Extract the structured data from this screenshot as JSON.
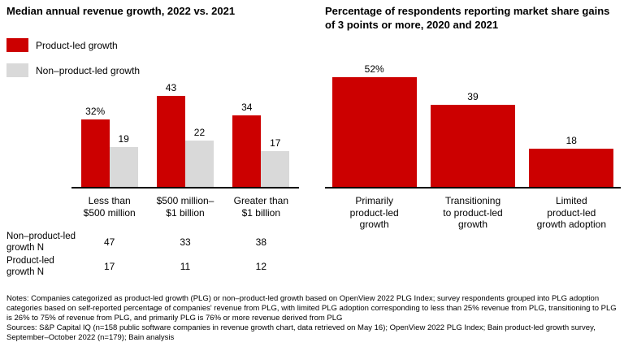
{
  "colors": {
    "plg_red": "#cc0000",
    "non_plg_gray": "#d9d9d9",
    "axis_black": "#000000"
  },
  "chart_data": [
    {
      "type": "bar",
      "title": "Median annual revenue growth, 2022 vs. 2021",
      "categories": [
        "Less than $500 million",
        "$500 million–$1 billion",
        "Greater than $1 billion"
      ],
      "category_labels": [
        "Less than\n$500 million",
        "$500 million–\n$1 billion",
        "Greater than\n$1 billion"
      ],
      "series": [
        {
          "name": "Product-led growth",
          "values": [
            32,
            43,
            34
          ],
          "labels": [
            "32%",
            "43",
            "34"
          ],
          "color": "#cc0000"
        },
        {
          "name": "Non–product-led growth",
          "values": [
            19,
            22,
            17
          ],
          "labels": [
            "19",
            "22",
            "17"
          ],
          "color": "#d9d9d9"
        }
      ],
      "n_rows": [
        {
          "label": "Non–product-led\ngrowth N",
          "values": [
            "47",
            "33",
            "38"
          ]
        },
        {
          "label": "Product-led\ngrowth N",
          "values": [
            "17",
            "11",
            "12"
          ]
        }
      ],
      "xlabel": "",
      "ylabel": "",
      "ylim": [
        0,
        50
      ],
      "grid": false,
      "legend_position": "top-left"
    },
    {
      "type": "bar",
      "title": "Percentage of respondents reporting market share gains of 3 points or more, 2020 and 2021",
      "categories": [
        "Primarily product-led growth",
        "Transitioning to product-led growth",
        "Limited product-led growth adoption"
      ],
      "category_labels": [
        "Primarily\nproduct-led\ngrowth",
        "Transitioning\nto product-led\ngrowth",
        "Limited\nproduct-led\ngrowth adoption"
      ],
      "values": [
        52,
        39,
        18
      ],
      "labels": [
        "52%",
        "39",
        "18"
      ],
      "color": "#cc0000",
      "xlabel": "",
      "ylabel": "",
      "ylim": [
        0,
        60
      ],
      "grid": false,
      "legend_position": "none"
    }
  ],
  "notes": {
    "note_line": "Notes: Companies categorized as product-led growth (PLG) or non–product-led growth based on OpenView 2022 PLG Index; survey respondents grouped into PLG adoption categories based on self-reported percentage of companies' revenue from PLG, with limited PLG adoption corresponding to less than 25% revenue from PLG, transitioning to PLG is 26% to 75% of revenue from PLG, and primarily PLG is 76% or more revenue derived from PLG",
    "source_line": "Sources: S&P Capital IQ (n=158 public software companies in revenue growth chart, data retrieved on May 16); OpenView 2022 PLG Index; Bain product-led growth survey, September–October 2022 (n=179); Bain analysis"
  }
}
